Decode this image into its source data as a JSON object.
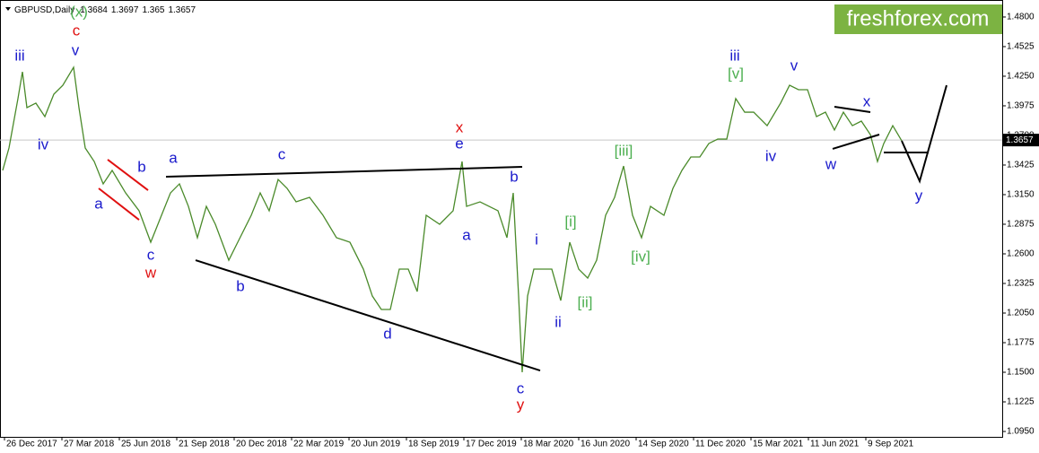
{
  "chart_data": {
    "type": "line",
    "symbol": "GBPUSD,Daily",
    "ohlc": [
      1.3684,
      1.3697,
      1.365,
      1.3657
    ],
    "brand": "freshforex.com",
    "current_price": 1.3657,
    "x": [
      -2,
      5,
      15,
      20,
      25,
      35,
      45,
      55,
      65,
      77,
      83,
      90,
      100,
      110,
      120,
      135,
      150,
      163,
      175,
      185,
      195,
      205,
      215,
      225,
      235,
      250,
      260,
      275,
      285,
      295,
      305,
      315,
      325,
      340,
      355,
      370,
      385,
      400,
      410,
      420,
      430,
      440,
      450,
      460,
      470,
      485,
      500,
      510,
      515,
      530,
      550,
      560,
      567,
      573,
      577,
      583,
      590,
      600,
      610,
      620,
      630,
      640,
      650,
      660,
      670,
      680,
      690,
      700,
      710,
      720,
      735,
      745,
      755,
      765,
      775,
      785,
      795,
      805,
      815,
      825,
      835,
      850,
      865,
      875,
      885,
      895,
      905,
      915,
      925,
      935,
      945,
      955,
      965,
      973,
      980,
      990,
      1000
    ],
    "series": [
      {
        "color": "#4a8a2a",
        "values": [
          1.3375,
          1.3583,
          1.4042,
          1.4291,
          1.3958,
          1.4,
          1.3875,
          1.4083,
          1.4166,
          1.4333,
          1.3958,
          1.3583,
          1.3458,
          1.325,
          1.3375,
          1.3166,
          1.3,
          1.2708,
          1.2958,
          1.3166,
          1.325,
          1.3041,
          1.275,
          1.3041,
          1.2875,
          1.2541,
          1.2708,
          1.2958,
          1.3166,
          1.3,
          1.3291,
          1.3208,
          1.3083,
          1.3125,
          1.2958,
          1.275,
          1.2708,
          1.2458,
          1.2208,
          1.2083,
          1.2083,
          1.2458,
          1.2458,
          1.225,
          1.2958,
          1.2875,
          1.3,
          1.3458,
          1.3041,
          1.3083,
          1.3,
          1.275,
          1.3166,
          1.2208,
          1.15,
          1.2208,
          1.2458,
          1.2458,
          1.2458,
          1.2166,
          1.2708,
          1.2458,
          1.2375,
          1.2541,
          1.2958,
          1.3125,
          1.3416,
          1.2958,
          1.275,
          1.3041,
          1.2958,
          1.3208,
          1.3375,
          1.35,
          1.35,
          1.3625,
          1.3666,
          1.3666,
          1.4042,
          1.3916,
          1.3916,
          1.3791,
          1.4,
          1.4166,
          1.4125,
          1.4125,
          1.3875,
          1.3916,
          1.375,
          1.3916,
          1.3791,
          1.3833,
          1.3708,
          1.3458,
          1.3625,
          1.3791,
          1.365
        ]
      }
    ],
    "xlim": [
      -5,
      1112
    ],
    "ylim": [
      1.09,
      1.4958
    ],
    "xticks": [
      {
        "value": 0,
        "label": "26 Dec 2017"
      },
      {
        "value": 64,
        "label": "27 Mar 2018"
      },
      {
        "value": 128,
        "label": "25 Jun 2018"
      },
      {
        "value": 192,
        "label": "21 Sep 2018"
      },
      {
        "value": 256,
        "label": "20 Dec 2018"
      },
      {
        "value": 320,
        "label": "22 Mar 2019"
      },
      {
        "value": 384,
        "label": "20 Jun 2019"
      },
      {
        "value": 448,
        "label": "18 Sep 2019"
      },
      {
        "value": 512,
        "label": "17 Dec 2019"
      },
      {
        "value": 576,
        "label": "18 Mar 2020"
      },
      {
        "value": 640,
        "label": "16 Jun 2020"
      },
      {
        "value": 704,
        "label": "14 Sep 2020"
      },
      {
        "value": 768,
        "label": "11 Dec 2020"
      },
      {
        "value": 832,
        "label": "15 Mar 2021"
      },
      {
        "value": 896,
        "label": "11 Jun 2021"
      },
      {
        "value": 960,
        "label": "9 Sep 2021"
      }
    ],
    "yticks": [
      {
        "value": 1.095,
        "label": "1.0950"
      },
      {
        "value": 1.1225,
        "label": "1.1225"
      },
      {
        "value": 1.15,
        "label": "1.1500"
      },
      {
        "value": 1.1775,
        "label": "1.1775"
      },
      {
        "value": 1.205,
        "label": "1.2050"
      },
      {
        "value": 1.2325,
        "label": "1.2325"
      },
      {
        "value": 1.26,
        "label": "1.2600"
      },
      {
        "value": 1.2875,
        "label": "1.2875"
      },
      {
        "value": 1.315,
        "label": "1.3150"
      },
      {
        "value": 1.3425,
        "label": "1.3425"
      },
      {
        "value": 1.37,
        "label": "1.3700"
      },
      {
        "value": 1.3975,
        "label": "1.3975"
      },
      {
        "value": 1.425,
        "label": "1.4250"
      },
      {
        "value": 1.4525,
        "label": "1.4525"
      },
      {
        "value": 1.48,
        "label": "1.4800"
      }
    ],
    "annotations": [
      {
        "text": "iii",
        "x": 17,
        "y": 1.4433,
        "color": "#1a1acc"
      },
      {
        "text": "(x)",
        "x": 83,
        "y": 1.4841,
        "color": "#4caf50"
      },
      {
        "text": "c",
        "x": 80,
        "y": 1.4666,
        "color": "#e01010"
      },
      {
        "text": "v",
        "x": 79,
        "y": 1.4483,
        "color": "#1a1acc"
      },
      {
        "text": "iv",
        "x": 43,
        "y": 1.3608,
        "color": "#1a1acc"
      },
      {
        "text": "b",
        "x": 153,
        "y": 1.34,
        "color": "#1a1acc"
      },
      {
        "text": "a",
        "x": 105,
        "y": 1.3058,
        "color": "#1a1acc"
      },
      {
        "text": "a",
        "x": 188,
        "y": 1.3483,
        "color": "#1a1acc"
      },
      {
        "text": "c",
        "x": 163,
        "y": 1.2583,
        "color": "#1a1acc"
      },
      {
        "text": "w",
        "x": 163,
        "y": 1.2416,
        "color": "#e01010"
      },
      {
        "text": "c",
        "x": 309,
        "y": 1.3516,
        "color": "#1a1acc"
      },
      {
        "text": "b",
        "x": 263,
        "y": 1.2291,
        "color": "#1a1acc"
      },
      {
        "text": "d",
        "x": 427,
        "y": 1.185,
        "color": "#1a1acc"
      },
      {
        "text": "x",
        "x": 507,
        "y": 1.3766,
        "color": "#e01010"
      },
      {
        "text": "e",
        "x": 507,
        "y": 1.3616,
        "color": "#1a1acc"
      },
      {
        "text": "b",
        "x": 568,
        "y": 1.3308,
        "color": "#1a1acc"
      },
      {
        "text": "a",
        "x": 515,
        "y": 1.2766,
        "color": "#1a1acc"
      },
      {
        "text": "i",
        "x": 593,
        "y": 1.2725,
        "color": "#1a1acc"
      },
      {
        "text": "c",
        "x": 575,
        "y": 1.1341,
        "color": "#1a1acc"
      },
      {
        "text": "y",
        "x": 575,
        "y": 1.1191,
        "color": "#e01010"
      },
      {
        "text": "ii",
        "x": 617,
        "y": 1.1958,
        "color": "#1a1acc"
      },
      {
        "text": "[i]",
        "x": 631,
        "y": 1.2891,
        "color": "#4caf50"
      },
      {
        "text": "[ii]",
        "x": 647,
        "y": 1.2141,
        "color": "#4caf50"
      },
      {
        "text": "[iii]",
        "x": 690,
        "y": 1.355,
        "color": "#4caf50"
      },
      {
        "text": "[iv]",
        "x": 709,
        "y": 1.2566,
        "color": "#4caf50"
      },
      {
        "text": "iii",
        "x": 814,
        "y": 1.4433,
        "color": "#1a1acc"
      },
      {
        "text": "[v]",
        "x": 815,
        "y": 1.4266,
        "color": "#4caf50"
      },
      {
        "text": "v",
        "x": 880,
        "y": 1.4341,
        "color": "#1a1acc"
      },
      {
        "text": "iv",
        "x": 854,
        "y": 1.35,
        "color": "#1a1acc"
      },
      {
        "text": "x",
        "x": 961,
        "y": 1.4008,
        "color": "#1a1acc"
      },
      {
        "text": "w",
        "x": 921,
        "y": 1.3425,
        "color": "#1a1acc"
      },
      {
        "text": "y",
        "x": 1019,
        "y": 1.3133,
        "color": "#1a1acc"
      }
    ],
    "drawings": [
      {
        "color": "#000000",
        "points": [
          [
            180,
            1.3316
          ],
          [
            577,
            1.3408
          ]
        ]
      },
      {
        "color": "#000000",
        "points": [
          [
            213,
            1.2541
          ],
          [
            597,
            1.1516
          ]
        ]
      },
      {
        "color": "#e01010",
        "points": [
          [
            115,
            1.3475
          ],
          [
            160,
            1.3191
          ]
        ]
      },
      {
        "color": "#e01010",
        "points": [
          [
            105,
            1.3208
          ],
          [
            150,
            1.2916
          ]
        ]
      },
      {
        "color": "#000000",
        "points": [
          [
            925,
            1.3966
          ],
          [
            965,
            1.3916
          ]
        ]
      },
      {
        "color": "#000000",
        "points": [
          [
            923,
            1.3575
          ],
          [
            975,
            1.3708
          ]
        ]
      },
      {
        "color": "#000000",
        "points": [
          [
            980,
            1.3541
          ],
          [
            1030,
            1.3541
          ]
        ]
      },
      {
        "color": "#000000",
        "points": [
          [
            1000,
            1.365
          ],
          [
            1020,
            1.3275
          ],
          [
            1050,
            1.4166
          ]
        ]
      }
    ]
  }
}
